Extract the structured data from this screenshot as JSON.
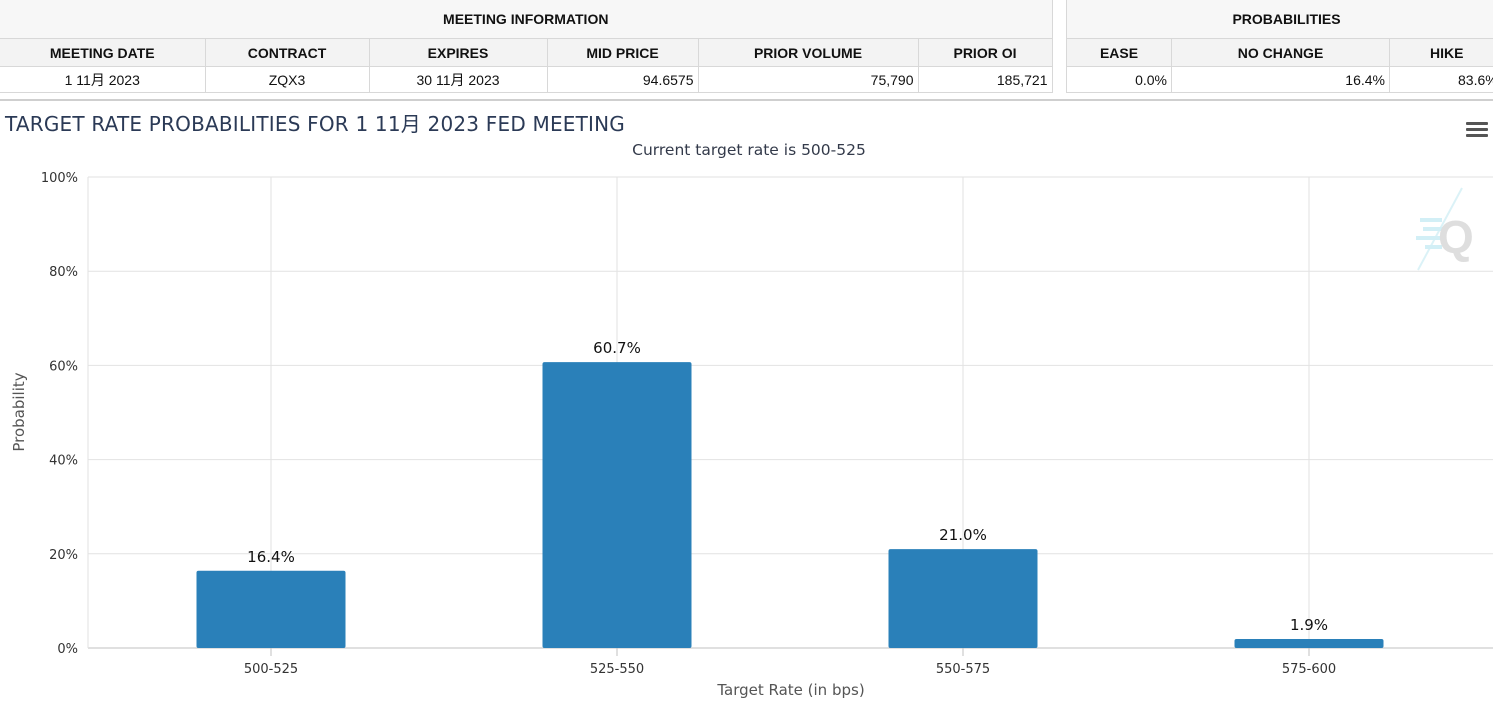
{
  "meeting_info": {
    "group_title": "MEETING INFORMATION",
    "headers": [
      "MEETING DATE",
      "CONTRACT",
      "EXPIRES",
      "MID PRICE",
      "PRIOR VOLUME",
      "PRIOR OI"
    ],
    "row": [
      "1 11月 2023",
      "ZQX3",
      "30 11月 2023",
      "94.6575",
      "75,790",
      "185,721"
    ]
  },
  "probabilities": {
    "group_title": "PROBABILITIES",
    "headers": [
      "EASE",
      "NO CHANGE",
      "HIKE"
    ],
    "row": [
      "0.0%",
      "16.4%",
      "83.6%"
    ]
  },
  "menu_icon": "hamburger-menu-icon",
  "watermark_icon": "q-logo-icon",
  "chart_data": {
    "type": "bar",
    "title": "TARGET RATE PROBABILITIES FOR 1 11月 2023 FED MEETING",
    "subtitle": "Current target rate is 500-525",
    "categories": [
      "500-525",
      "525-550",
      "550-575",
      "575-600"
    ],
    "values": [
      16.4,
      60.7,
      21.0,
      1.9
    ],
    "data_labels": [
      "16.4%",
      "60.7%",
      "21.0%",
      "1.9%"
    ],
    "xlabel": "Target Rate (in bps)",
    "ylabel": "Probability",
    "ylim": [
      0,
      100
    ],
    "yticks": [
      "0%",
      "20%",
      "40%",
      "60%",
      "80%",
      "100%"
    ],
    "grid": true,
    "bar_color": "#2a80b9"
  }
}
